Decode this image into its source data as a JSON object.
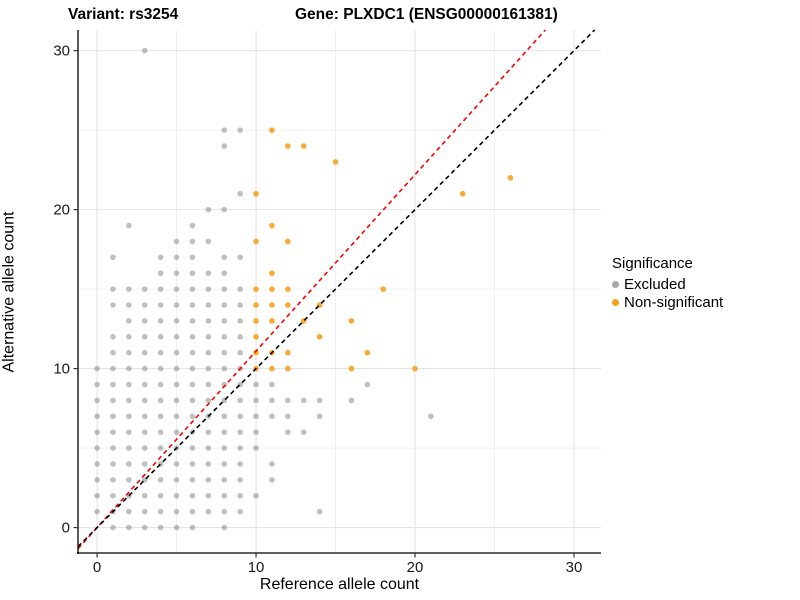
{
  "title": {
    "variant": "Variant: rs3254",
    "gene": "Gene: PLXDC1 (ENSG00000161381)"
  },
  "chart_data": {
    "type": "scatter",
    "xlabel": "Reference allele count",
    "ylabel": "Alternative allele count",
    "xlim": [
      -1.2,
      31.7
    ],
    "ylim": [
      -1.6,
      31.3
    ],
    "x_ticks": [
      0,
      10,
      20,
      30
    ],
    "y_ticks": [
      0,
      10,
      20,
      30
    ],
    "minor_gridlines": [
      5,
      15,
      25
    ],
    "grid": "on",
    "legend": {
      "title": "Significance",
      "position": "right",
      "items": [
        {
          "label": "Excluded",
          "color": "#a9a9a9"
        },
        {
          "label": "Non-significant",
          "color": "#f9a01b"
        }
      ]
    },
    "lines": [
      {
        "name": "expected-ratio-line",
        "slope": 1.11,
        "intercept": 0,
        "color": "#ff0000",
        "style": "dashed"
      },
      {
        "name": "identity-line",
        "slope": 1.0,
        "intercept": 0,
        "color": "#000000",
        "style": "dashed"
      }
    ],
    "series": [
      {
        "name": "Excluded",
        "color": "#808080",
        "opacity": 0.5,
        "points": [
          [
            3,
            30
          ],
          [
            8,
            25
          ],
          [
            9,
            25
          ],
          [
            8,
            24
          ],
          [
            9,
            21
          ],
          [
            7,
            20
          ],
          [
            8,
            20
          ],
          [
            2,
            19
          ],
          [
            6,
            19
          ],
          [
            5,
            18
          ],
          [
            6,
            18
          ],
          [
            7,
            18
          ],
          [
            1,
            17
          ],
          [
            4,
            17
          ],
          [
            5,
            17
          ],
          [
            6,
            17
          ],
          [
            8,
            17
          ],
          [
            9,
            17
          ],
          [
            4,
            16
          ],
          [
            5,
            16
          ],
          [
            6,
            16
          ],
          [
            7,
            16
          ],
          [
            8,
            16
          ],
          [
            1,
            15
          ],
          [
            2,
            15
          ],
          [
            3,
            15
          ],
          [
            4,
            15
          ],
          [
            5,
            15
          ],
          [
            6,
            15
          ],
          [
            7,
            15
          ],
          [
            8,
            15
          ],
          [
            9,
            15
          ],
          [
            1,
            14
          ],
          [
            2,
            14
          ],
          [
            3,
            14
          ],
          [
            4,
            14
          ],
          [
            5,
            14
          ],
          [
            6,
            14
          ],
          [
            7,
            14
          ],
          [
            8,
            14
          ],
          [
            9,
            14
          ],
          [
            2,
            13
          ],
          [
            3,
            13
          ],
          [
            4,
            13
          ],
          [
            5,
            13
          ],
          [
            6,
            13
          ],
          [
            7,
            13
          ],
          [
            8,
            13
          ],
          [
            9,
            13
          ],
          [
            1,
            12
          ],
          [
            2,
            12
          ],
          [
            3,
            12
          ],
          [
            4,
            12
          ],
          [
            5,
            12
          ],
          [
            6,
            12
          ],
          [
            7,
            12
          ],
          [
            8,
            12
          ],
          [
            9,
            12
          ],
          [
            1,
            11
          ],
          [
            2,
            11
          ],
          [
            3,
            11
          ],
          [
            4,
            11
          ],
          [
            5,
            11
          ],
          [
            6,
            11
          ],
          [
            7,
            11
          ],
          [
            8,
            11
          ],
          [
            9,
            11
          ],
          [
            0,
            10
          ],
          [
            1,
            10
          ],
          [
            2,
            10
          ],
          [
            3,
            10
          ],
          [
            4,
            10
          ],
          [
            5,
            10
          ],
          [
            6,
            10
          ],
          [
            7,
            10
          ],
          [
            8,
            10
          ],
          [
            9,
            10
          ],
          [
            0,
            9
          ],
          [
            1,
            9
          ],
          [
            2,
            9
          ],
          [
            3,
            9
          ],
          [
            4,
            9
          ],
          [
            5,
            9
          ],
          [
            6,
            9
          ],
          [
            7,
            9
          ],
          [
            8,
            9
          ],
          [
            9,
            9
          ],
          [
            10,
            9
          ],
          [
            11,
            9
          ],
          [
            17,
            9
          ],
          [
            0,
            8
          ],
          [
            1,
            8
          ],
          [
            2,
            8
          ],
          [
            3,
            8
          ],
          [
            4,
            8
          ],
          [
            5,
            8
          ],
          [
            6,
            8
          ],
          [
            7,
            8
          ],
          [
            8,
            8
          ],
          [
            9,
            8
          ],
          [
            10,
            8
          ],
          [
            11,
            8
          ],
          [
            12,
            8
          ],
          [
            13,
            8
          ],
          [
            14,
            8
          ],
          [
            16,
            8
          ],
          [
            0,
            7
          ],
          [
            1,
            7
          ],
          [
            2,
            7
          ],
          [
            3,
            7
          ],
          [
            4,
            7
          ],
          [
            5,
            7
          ],
          [
            6,
            7
          ],
          [
            7,
            7
          ],
          [
            8,
            7
          ],
          [
            9,
            7
          ],
          [
            10,
            7
          ],
          [
            11,
            7
          ],
          [
            12,
            7
          ],
          [
            14,
            7
          ],
          [
            21,
            7
          ],
          [
            0,
            6
          ],
          [
            1,
            6
          ],
          [
            2,
            6
          ],
          [
            3,
            6
          ],
          [
            4,
            6
          ],
          [
            5,
            6
          ],
          [
            6,
            6
          ],
          [
            7,
            6
          ],
          [
            8,
            6
          ],
          [
            9,
            6
          ],
          [
            10,
            6
          ],
          [
            12,
            6
          ],
          [
            13,
            6
          ],
          [
            0,
            5
          ],
          [
            1,
            5
          ],
          [
            2,
            5
          ],
          [
            3,
            5
          ],
          [
            4,
            5
          ],
          [
            5,
            5
          ],
          [
            6,
            5
          ],
          [
            7,
            5
          ],
          [
            8,
            5
          ],
          [
            9,
            5
          ],
          [
            10,
            5
          ],
          [
            0,
            4
          ],
          [
            1,
            4
          ],
          [
            2,
            4
          ],
          [
            3,
            4
          ],
          [
            4,
            4
          ],
          [
            5,
            4
          ],
          [
            6,
            4
          ],
          [
            7,
            4
          ],
          [
            8,
            4
          ],
          [
            9,
            4
          ],
          [
            11,
            4
          ],
          [
            0,
            3
          ],
          [
            1,
            3
          ],
          [
            2,
            3
          ],
          [
            3,
            3
          ],
          [
            4,
            3
          ],
          [
            5,
            3
          ],
          [
            6,
            3
          ],
          [
            7,
            3
          ],
          [
            8,
            3
          ],
          [
            9,
            3
          ],
          [
            11,
            3
          ],
          [
            0,
            2
          ],
          [
            1,
            2
          ],
          [
            2,
            2
          ],
          [
            3,
            2
          ],
          [
            4,
            2
          ],
          [
            5,
            2
          ],
          [
            6,
            2
          ],
          [
            7,
            2
          ],
          [
            8,
            2
          ],
          [
            9,
            2
          ],
          [
            10,
            2
          ],
          [
            0,
            1
          ],
          [
            1,
            1
          ],
          [
            2,
            1
          ],
          [
            3,
            1
          ],
          [
            4,
            1
          ],
          [
            5,
            1
          ],
          [
            6,
            1
          ],
          [
            7,
            1
          ],
          [
            8,
            1
          ],
          [
            9,
            1
          ],
          [
            14,
            1
          ],
          [
            1,
            0
          ],
          [
            2,
            0
          ],
          [
            3,
            0
          ],
          [
            4,
            0
          ],
          [
            5,
            0
          ],
          [
            6,
            0
          ],
          [
            8,
            0
          ]
        ]
      },
      {
        "name": "Non-significant",
        "color": "#f9a01b",
        "opacity": 0.9,
        "points": [
          [
            11,
            25
          ],
          [
            12,
            24
          ],
          [
            13,
            24
          ],
          [
            15,
            23
          ],
          [
            26,
            22
          ],
          [
            10,
            21
          ],
          [
            23,
            21
          ],
          [
            11,
            19
          ],
          [
            10,
            18
          ],
          [
            12,
            18
          ],
          [
            11,
            16
          ],
          [
            10,
            15
          ],
          [
            11,
            15
          ],
          [
            12,
            15
          ],
          [
            18,
            15
          ],
          [
            10,
            14
          ],
          [
            11,
            14
          ],
          [
            12,
            14
          ],
          [
            14,
            14
          ],
          [
            10,
            13
          ],
          [
            11,
            13
          ],
          [
            13,
            13
          ],
          [
            16,
            13
          ],
          [
            10,
            12
          ],
          [
            14,
            12
          ],
          [
            10,
            11
          ],
          [
            11,
            11
          ],
          [
            12,
            11
          ],
          [
            17,
            11
          ],
          [
            10,
            10
          ],
          [
            11,
            10
          ],
          [
            12,
            10
          ],
          [
            16,
            10
          ],
          [
            20,
            10
          ]
        ]
      }
    ]
  }
}
